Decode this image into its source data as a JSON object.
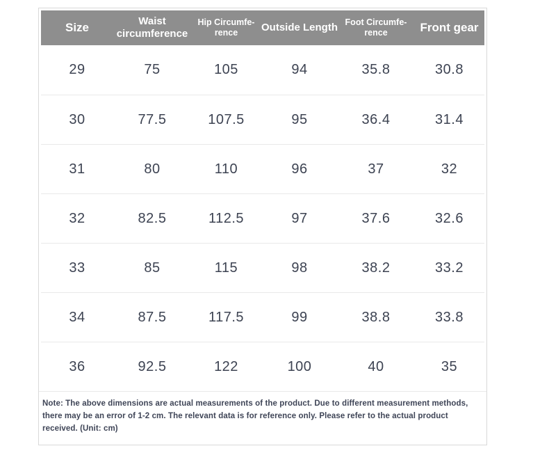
{
  "table": {
    "header": [
      "Size",
      "Waist circumference",
      "Hip Circumfe-rence",
      "Outside Length",
      "Foot Circumfe-rence",
      "Front gear"
    ],
    "rows": [
      [
        "29",
        "75",
        "105",
        "94",
        "35.8",
        "30.8"
      ],
      [
        "30",
        "77.5",
        "107.5",
        "95",
        "36.4",
        "31.4"
      ],
      [
        "31",
        "80",
        "110",
        "96",
        "37",
        "32"
      ],
      [
        "32",
        "82.5",
        "112.5",
        "97",
        "37.6",
        "32.6"
      ],
      [
        "33",
        "85",
        "115",
        "98",
        "38.2",
        "33.2"
      ],
      [
        "34",
        "87.5",
        "117.5",
        "99",
        "38.8",
        "33.8"
      ],
      [
        "36",
        "92.5",
        "122",
        "100",
        "40",
        "35"
      ]
    ],
    "note": "Note: The above dimensions are actual measurements of the product. Due to different measurement methods, there may be an error of 1-2 cm. The relevant data is for reference only. Please refer to the actual product received. (Unit: cm)"
  },
  "colors": {
    "header_bg": "#8e8e8e",
    "header_text": "#ffffff",
    "body_text": "#3d4352",
    "outer_border": "#d9d9d9",
    "row_divider": "#e9e9e9"
  }
}
